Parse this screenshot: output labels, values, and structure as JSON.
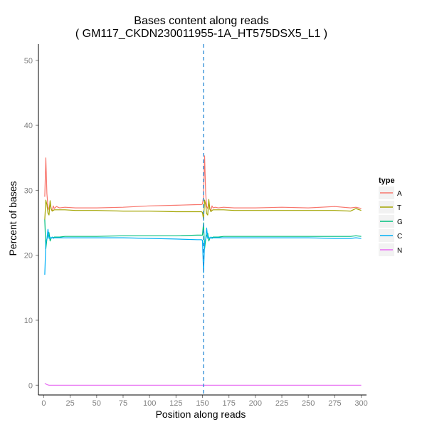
{
  "chart_data": {
    "type": "line",
    "title": "Bases content along reads",
    "subtitle": "( GM117_CKDN230011955-1A_HT575DSX5_L1 )",
    "xlabel": "Position along reads",
    "ylabel": "Percent of bases",
    "xlim": [
      -5,
      305
    ],
    "ylim": [
      -1.5,
      52.5
    ],
    "x_ticks": [
      0,
      25,
      50,
      75,
      100,
      125,
      150,
      175,
      200,
      225,
      250,
      275,
      300
    ],
    "y_ticks": [
      0,
      10,
      20,
      30,
      40,
      50
    ],
    "grid": false,
    "legend": {
      "title": "type",
      "position": "right"
    },
    "vline": {
      "x": 151,
      "color": "#2b8cd6",
      "style": "dashed"
    },
    "series": [
      {
        "name": "A",
        "color": "#F8766D",
        "x": [
          1,
          2,
          3,
          4,
          5,
          6,
          7,
          8,
          9,
          10,
          12,
          15,
          20,
          30,
          50,
          75,
          100,
          125,
          145,
          149,
          150,
          151,
          152,
          153,
          154,
          155,
          156,
          157,
          158,
          159,
          160,
          162,
          165,
          170,
          180,
          200,
          225,
          250,
          275,
          290,
          295,
          300
        ],
        "y": [
          29.0,
          35.0,
          29.5,
          27.5,
          27.0,
          28.0,
          27.2,
          26.8,
          27.6,
          27.2,
          27.5,
          27.3,
          27.4,
          27.3,
          27.3,
          27.4,
          27.6,
          27.7,
          27.8,
          27.8,
          27.9,
          29.0,
          35.3,
          29.5,
          27.5,
          27.2,
          28.2,
          27.1,
          26.9,
          27.6,
          27.3,
          27.4,
          27.3,
          27.4,
          27.3,
          27.3,
          27.4,
          27.3,
          27.5,
          27.3,
          27.4,
          27.2
        ]
      },
      {
        "name": "T",
        "color": "#A3A500",
        "x": [
          1,
          2,
          3,
          4,
          5,
          6,
          7,
          8,
          9,
          10,
          12,
          15,
          20,
          30,
          50,
          75,
          100,
          125,
          145,
          149,
          150,
          151,
          152,
          153,
          154,
          155,
          156,
          157,
          158,
          159,
          160,
          162,
          165,
          170,
          180,
          200,
          225,
          250,
          275,
          290,
          295,
          300
        ],
        "y": [
          25.5,
          28.5,
          27.8,
          26.5,
          26.2,
          28.4,
          27.2,
          26.8,
          26.9,
          27.0,
          27.0,
          27.0,
          27.0,
          26.9,
          26.9,
          26.8,
          26.8,
          26.7,
          26.7,
          26.7,
          26.6,
          25.5,
          28.5,
          27.8,
          26.4,
          26.2,
          28.6,
          27.1,
          26.7,
          26.9,
          27.0,
          27.0,
          27.0,
          27.0,
          26.9,
          26.9,
          26.9,
          26.9,
          26.9,
          26.8,
          27.2,
          26.9
        ]
      },
      {
        "name": "G",
        "color": "#00BF7D",
        "x": [
          1,
          2,
          3,
          4,
          5,
          6,
          7,
          8,
          9,
          10,
          12,
          15,
          20,
          30,
          50,
          75,
          100,
          125,
          145,
          149,
          150,
          151,
          152,
          153,
          154,
          155,
          156,
          157,
          158,
          159,
          160,
          162,
          165,
          170,
          180,
          200,
          225,
          250,
          275,
          290,
          295,
          300
        ],
        "y": [
          25.5,
          21.0,
          22.5,
          23.0,
          23.5,
          22.2,
          22.6,
          22.8,
          22.7,
          22.8,
          22.8,
          22.8,
          22.9,
          22.9,
          22.9,
          23.0,
          23.0,
          23.0,
          23.1,
          23.1,
          23.1,
          25.0,
          21.0,
          22.5,
          23.0,
          23.4,
          22.2,
          22.6,
          22.8,
          22.7,
          22.8,
          22.8,
          22.8,
          22.9,
          22.9,
          22.9,
          22.9,
          22.9,
          22.9,
          22.9,
          23.0,
          22.9
        ]
      },
      {
        "name": "C",
        "color": "#00B0F6",
        "x": [
          1,
          2,
          3,
          4,
          5,
          6,
          7,
          8,
          9,
          10,
          12,
          15,
          20,
          30,
          50,
          75,
          100,
          125,
          145,
          149,
          150,
          151,
          152,
          153,
          154,
          155,
          156,
          157,
          158,
          159,
          160,
          162,
          165,
          170,
          180,
          200,
          225,
          250,
          275,
          290,
          295,
          300
        ],
        "y": [
          17.0,
          22.0,
          22.5,
          24.0,
          22.6,
          22.8,
          22.6,
          22.8,
          22.6,
          22.7,
          22.7,
          22.7,
          22.7,
          22.7,
          22.7,
          22.7,
          22.6,
          22.5,
          22.4,
          22.4,
          22.3,
          17.3,
          22.0,
          22.5,
          24.2,
          22.6,
          22.8,
          22.6,
          22.8,
          22.6,
          22.7,
          22.7,
          22.7,
          22.7,
          22.7,
          22.7,
          22.7,
          22.7,
          22.6,
          22.6,
          22.7,
          22.6
        ]
      },
      {
        "name": "N",
        "color": "#E76BF3",
        "x": [
          1,
          3,
          5,
          10,
          50,
          100,
          150,
          151,
          152,
          155,
          200,
          250,
          300
        ],
        "y": [
          0.3,
          0.1,
          0.0,
          0.0,
          0.0,
          0.0,
          0.0,
          0.0,
          0.0,
          0.0,
          0.0,
          0.0,
          0.0
        ]
      }
    ]
  }
}
